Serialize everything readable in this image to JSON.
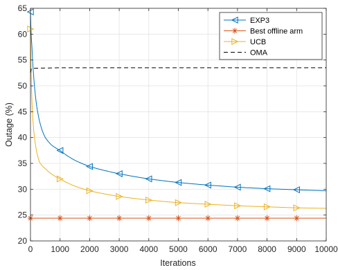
{
  "chart_data": {
    "type": "line",
    "xlabel": "Iterations",
    "ylabel": "Outage (%)",
    "xlim": [
      0,
      10000
    ],
    "ylim": [
      20,
      65
    ],
    "xticks": [
      0,
      1000,
      2000,
      3000,
      4000,
      5000,
      6000,
      7000,
      8000,
      9000,
      10000
    ],
    "yticks": [
      20,
      25,
      30,
      35,
      40,
      45,
      50,
      55,
      60,
      65
    ],
    "grid": true,
    "legend_position": "top-right",
    "series": [
      {
        "name": "EXP3",
        "color": "#0072BD",
        "marker": "triangle-left",
        "x": [
          0,
          50,
          100,
          200,
          300,
          400,
          500,
          700,
          1000,
          1500,
          2000,
          3000,
          4000,
          5000,
          6000,
          7000,
          8000,
          9000,
          10000
        ],
        "y": [
          64.3,
          57.5,
          52.5,
          46.5,
          43.3,
          41.3,
          40.0,
          38.6,
          37.5,
          35.6,
          34.4,
          33.0,
          32.0,
          31.3,
          30.8,
          30.4,
          30.1,
          29.9,
          29.7
        ],
        "marker_x": [
          0,
          1000,
          2000,
          3000,
          4000,
          5000,
          6000,
          7000,
          8000,
          9000
        ]
      },
      {
        "name": "Best offline arm",
        "color": "#D95319",
        "marker": "asterisk",
        "x": [
          0,
          10000
        ],
        "y": [
          24.4,
          24.4
        ],
        "marker_x": [
          0,
          1000,
          2000,
          3000,
          4000,
          5000,
          6000,
          7000,
          8000,
          9000
        ]
      },
      {
        "name": "UCB",
        "color": "#EDB120",
        "marker": "triangle-right",
        "x": [
          0,
          50,
          100,
          200,
          300,
          400,
          500,
          700,
          1000,
          1500,
          2000,
          3000,
          4000,
          5000,
          6000,
          7000,
          8000,
          9000,
          10000
        ],
        "y": [
          61.0,
          47.0,
          42.0,
          37.5,
          35.3,
          34.5,
          34.0,
          33.0,
          32.0,
          30.6,
          29.7,
          28.6,
          27.9,
          27.4,
          27.1,
          26.8,
          26.6,
          26.4,
          26.3
        ],
        "marker_x": [
          0,
          1000,
          2000,
          3000,
          4000,
          5000,
          6000,
          7000,
          8000,
          9000
        ]
      },
      {
        "name": "OMA",
        "color": "#000000",
        "line_style": "dashed",
        "marker": "none",
        "x": [
          0,
          30,
          100,
          1000,
          10000
        ],
        "y": [
          52.5,
          53.3,
          53.4,
          53.5,
          53.5
        ]
      }
    ]
  }
}
